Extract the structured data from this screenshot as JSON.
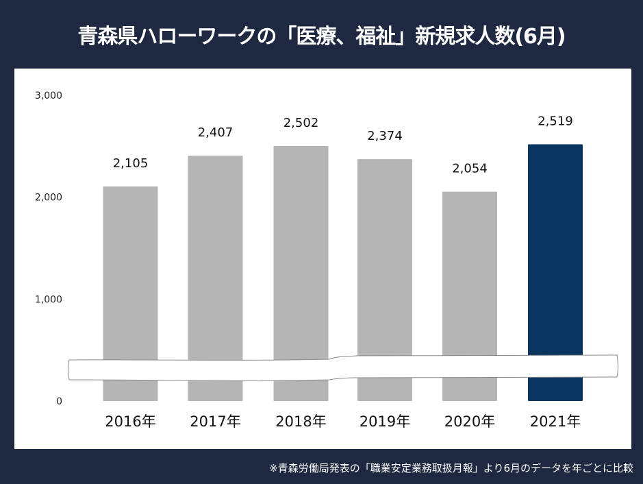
{
  "title": "青森県ハローワークの「医療、福祉」新規求人数(6月)",
  "footnote": "※青森労働局発表の「職業安定業務取扱月報」より6月のデータを年ごとに比較",
  "chart_data": {
    "type": "bar",
    "title": "青森県ハローワークの「医療、福祉」新規求人数(6月)",
    "categories": [
      "2016年",
      "2017年",
      "2018年",
      "2019年",
      "2020年",
      "2021年"
    ],
    "values": [
      2105,
      2407,
      2502,
      2374,
      2054,
      2519
    ],
    "data_labels": [
      "2,105",
      "2,407",
      "2,502",
      "2,374",
      "2,054",
      "2,519"
    ],
    "y_ticks": [
      {
        "value": 0,
        "label": "0"
      },
      {
        "value": 1000,
        "label": "1,000"
      },
      {
        "value": 2000,
        "label": "2,000"
      },
      {
        "value": 3000,
        "label": "3,000"
      }
    ],
    "ylim": [
      0,
      3000
    ],
    "axis_break": true,
    "grid": false,
    "colors": {
      "default": "#b5b5b5",
      "highlight": "#0a3560",
      "highlight_category": "2021年"
    }
  }
}
